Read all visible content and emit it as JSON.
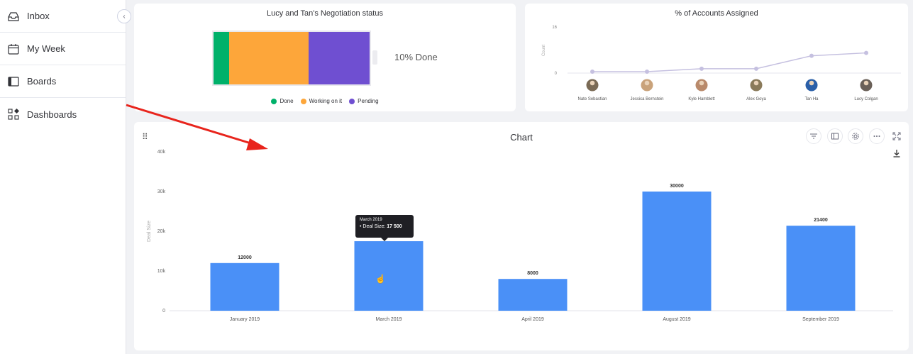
{
  "sidebar": {
    "items": [
      {
        "label": "Inbox",
        "icon": "inbox-icon"
      },
      {
        "label": "My Week",
        "icon": "calendar-icon"
      },
      {
        "label": "Boards",
        "icon": "board-icon"
      },
      {
        "label": "Dashboards",
        "icon": "dashboard-icon"
      }
    ],
    "collapse_glyph": "‹"
  },
  "negotiation": {
    "title": "Lucy and Tan's Negotiation status",
    "done_text": "10% Done",
    "segments": [
      {
        "name": "Done",
        "fraction": 0.1,
        "color": "#00b16a"
      },
      {
        "name": "Working on it",
        "fraction": 0.51,
        "color": "#fda63a"
      },
      {
        "name": "Pending",
        "fraction": 0.39,
        "color": "#6f4fd1"
      }
    ],
    "legend": [
      "Done",
      "Working on it",
      "Pending"
    ]
  },
  "accounts": {
    "title": "% of Accounts Assigned",
    "ylabel": "Count",
    "ymax_label": "16",
    "ymin_label": "0",
    "ylim": [
      0,
      16
    ],
    "people": [
      {
        "name": "Nate Sebastian",
        "value": 0.5
      },
      {
        "name": "Jessica Bernstein",
        "value": 0.5
      },
      {
        "name": "Kyle Hamblett",
        "value": 1.5
      },
      {
        "name": "Alex Goya",
        "value": 1.5
      },
      {
        "name": "Tan Ha",
        "value": 6
      },
      {
        "name": "Lucy Colgan",
        "value": 7
      }
    ],
    "line_color": "#c5c0e0"
  },
  "chart_widget": {
    "title": "Chart",
    "drag_glyph": "⠿",
    "tooltip": {
      "date": "March 2019",
      "series_prefix": "• Deal Size:",
      "value_text": "17 500"
    }
  },
  "chart_data": {
    "type": "bar",
    "title": "Chart",
    "ylabel": "Deal Size",
    "xlabel": "",
    "ylim": [
      0,
      40000
    ],
    "yticks": [
      "0",
      "10k",
      "20k",
      "30k",
      "40k"
    ],
    "categories": [
      "January 2019",
      "March 2019",
      "April 2019",
      "August 2019",
      "September 2019"
    ],
    "values": [
      12000,
      17500,
      8000,
      30000,
      21400
    ],
    "data_labels": [
      "12000",
      "",
      "8000",
      "30000",
      "21400"
    ],
    "bar_color": "#4a90f7",
    "grid": false
  }
}
